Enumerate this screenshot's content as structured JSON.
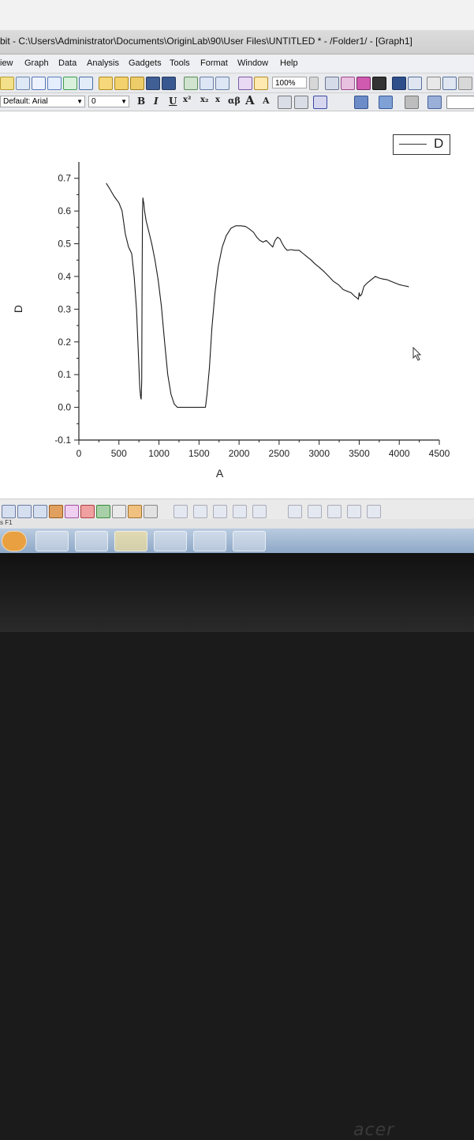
{
  "window": {
    "title": "bit - C:\\Users\\Administrator\\Documents\\OriginLab\\90\\User Files\\UNTITLED * - /Folder1/ - [Graph1]"
  },
  "menu": [
    "iew",
    "Graph",
    "Data",
    "Analysis",
    "Gadgets",
    "Tools",
    "Format",
    "Window",
    "Help"
  ],
  "toolbar": {
    "zoom_value": "100%",
    "font_value": "Default: Arial",
    "size_value": "0",
    "bold_label": "B",
    "italic_label": "I",
    "underline_label": "U",
    "superscript_label": "x²",
    "subscript_label": "x₂",
    "supersub_label": "x",
    "greek_label": "αβ",
    "grow_label": "A",
    "shrink_label": "A"
  },
  "status_text": "s F1",
  "brand": "acer",
  "chart_data": {
    "type": "line",
    "title": "",
    "xlabel": "A",
    "ylabel": "D",
    "xlim": [
      0,
      4500
    ],
    "ylim": [
      -0.1,
      0.75
    ],
    "xticks": [
      "0",
      "500",
      "1000",
      "1500",
      "2000",
      "2500",
      "3000",
      "3500",
      "4000",
      "4500"
    ],
    "yticks": [
      "-0.1",
      "0.0",
      "0.1",
      "0.2",
      "0.3",
      "0.4",
      "0.5",
      "0.6",
      "0.7"
    ],
    "grid": false,
    "legend": {
      "position": "top-right",
      "entries": [
        "D"
      ]
    },
    "series": [
      {
        "name": "D",
        "x": [
          342,
          380,
          440,
          500,
          540,
          580,
          620,
          660,
          690,
          720,
          745,
          760,
          772,
          778,
          785,
          790,
          795,
          800,
          805,
          810,
          820,
          840,
          870,
          910,
          950,
          990,
          1030,
          1070,
          1110,
          1150,
          1190,
          1230,
          1270,
          1300,
          1330,
          1350,
          1400,
          1450,
          1500,
          1550,
          1580,
          1600,
          1630,
          1660,
          1700,
          1740,
          1790,
          1840,
          1900,
          1960,
          2020,
          2080,
          2130,
          2180,
          2220,
          2260,
          2300,
          2340,
          2380,
          2420,
          2450,
          2480,
          2510,
          2540,
          2570,
          2600,
          2650,
          2700,
          2750,
          2800,
          2850,
          2900,
          2950,
          3000,
          3060,
          3120,
          3180,
          3240,
          3300,
          3350,
          3400,
          3440,
          3470,
          3490,
          3500,
          3510,
          3530,
          3560,
          3600,
          3650,
          3700,
          3750,
          3800,
          3850,
          3900,
          3950,
          4000,
          4050,
          4100,
          4120
        ],
        "y": [
          0.685,
          0.67,
          0.645,
          0.625,
          0.6,
          0.53,
          0.49,
          0.47,
          0.4,
          0.3,
          0.15,
          0.06,
          0.03,
          0.025,
          0.08,
          0.4,
          0.6,
          0.64,
          0.63,
          0.625,
          0.6,
          0.57,
          0.54,
          0.5,
          0.45,
          0.39,
          0.31,
          0.2,
          0.1,
          0.04,
          0.01,
          0.0,
          0.0,
          0.0,
          0.0,
          0.0,
          0.0,
          0.0,
          0.0,
          0.0,
          0.0,
          0.04,
          0.12,
          0.24,
          0.35,
          0.43,
          0.49,
          0.525,
          0.548,
          0.555,
          0.555,
          0.553,
          0.545,
          0.535,
          0.52,
          0.51,
          0.505,
          0.51,
          0.5,
          0.49,
          0.51,
          0.52,
          0.515,
          0.5,
          0.488,
          0.48,
          0.482,
          0.48,
          0.48,
          0.47,
          0.46,
          0.45,
          0.438,
          0.428,
          0.415,
          0.4,
          0.385,
          0.375,
          0.36,
          0.355,
          0.35,
          0.34,
          0.335,
          0.33,
          0.35,
          0.34,
          0.345,
          0.37,
          0.38,
          0.39,
          0.4,
          0.395,
          0.392,
          0.39,
          0.385,
          0.38,
          0.375,
          0.372,
          0.37,
          0.368
        ]
      }
    ]
  }
}
